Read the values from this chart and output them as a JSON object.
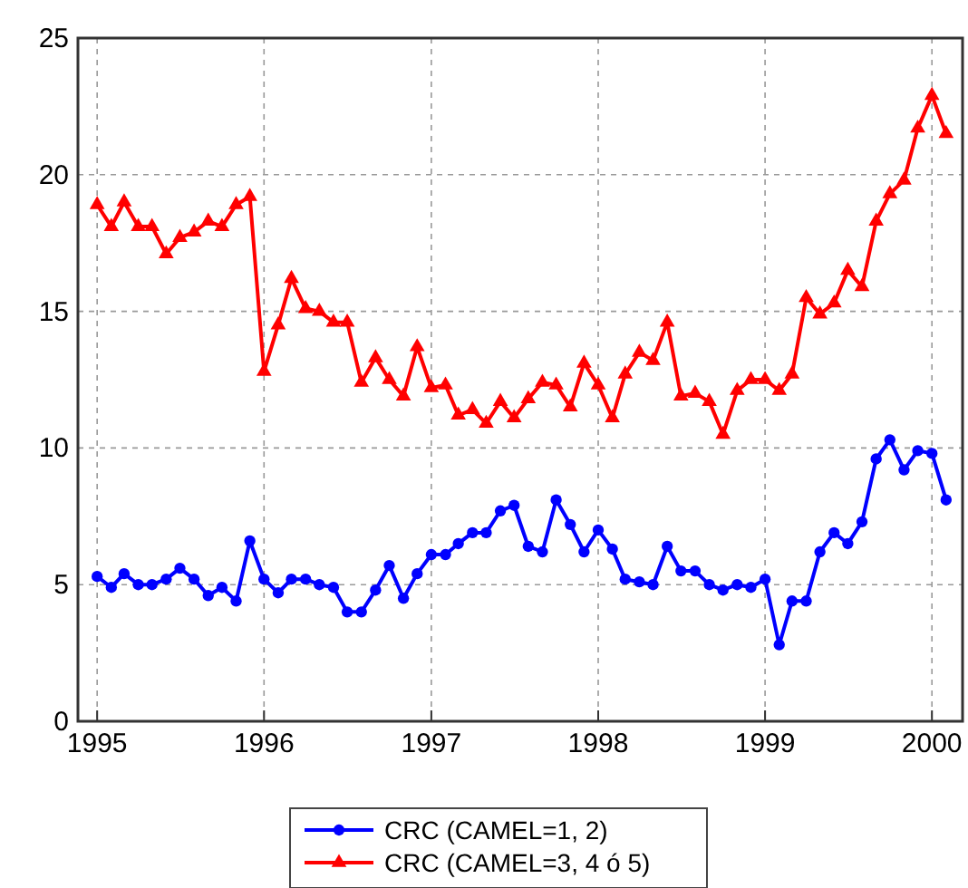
{
  "chart_data": {
    "type": "line",
    "x": [
      "1995-01",
      "1995-02",
      "1995-03",
      "1995-04",
      "1995-05",
      "1995-06",
      "1995-07",
      "1995-08",
      "1995-09",
      "1995-10",
      "1995-11",
      "1995-12",
      "1996-01",
      "1996-02",
      "1996-03",
      "1996-04",
      "1996-05",
      "1996-06",
      "1996-07",
      "1996-08",
      "1996-09",
      "1996-10",
      "1996-11",
      "1996-12",
      "1997-01",
      "1997-02",
      "1997-03",
      "1997-04",
      "1997-05",
      "1997-06",
      "1997-07",
      "1997-08",
      "1997-09",
      "1997-10",
      "1997-11",
      "1997-12",
      "1998-01",
      "1998-02",
      "1998-03",
      "1998-04",
      "1998-05",
      "1998-06",
      "1998-07",
      "1998-08",
      "1998-09",
      "1998-10",
      "1998-11",
      "1998-12",
      "1999-01",
      "1999-02",
      "1999-03",
      "1999-04",
      "1999-05",
      "1999-06",
      "1999-07",
      "1999-08",
      "1999-09",
      "1999-10",
      "1999-11",
      "1999-12",
      "2000-01",
      "2000-02"
    ],
    "series": [
      {
        "name": "CRC (CAMEL=1, 2)",
        "color": "#0000ff",
        "marker": "circle",
        "values": [
          5.3,
          4.9,
          5.4,
          5.0,
          5.0,
          5.2,
          5.6,
          5.2,
          4.6,
          4.9,
          4.4,
          6.6,
          5.2,
          4.7,
          5.2,
          5.2,
          5.0,
          4.9,
          4.0,
          4.0,
          4.8,
          5.7,
          4.5,
          5.4,
          6.1,
          6.1,
          6.5,
          6.9,
          6.9,
          7.7,
          7.9,
          6.4,
          6.2,
          8.1,
          7.2,
          6.2,
          7.0,
          6.3,
          5.2,
          5.1,
          5.0,
          6.4,
          5.5,
          5.5,
          5.0,
          4.8,
          5.0,
          4.9,
          5.2,
          2.8,
          4.4,
          4.4,
          6.2,
          6.9,
          6.5,
          7.3,
          9.6,
          10.3,
          9.2,
          9.9,
          9.8,
          8.1
        ]
      },
      {
        "name": "CRC (CAMEL=3, 4 ó 5)",
        "color": "#ff0000",
        "marker": "triangle",
        "values": [
          18.9,
          18.1,
          19.0,
          18.1,
          18.1,
          17.1,
          17.7,
          17.9,
          18.3,
          18.1,
          18.9,
          19.2,
          12.8,
          14.5,
          16.2,
          15.1,
          15.0,
          14.6,
          14.6,
          12.4,
          13.3,
          12.5,
          11.9,
          13.7,
          12.2,
          12.3,
          11.2,
          11.4,
          10.9,
          11.7,
          11.1,
          11.8,
          12.4,
          12.3,
          11.5,
          13.1,
          12.3,
          11.1,
          12.7,
          13.5,
          13.2,
          14.6,
          11.9,
          12.0,
          11.7,
          10.5,
          12.1,
          12.5,
          12.5,
          12.1,
          12.7,
          15.5,
          14.9,
          15.3,
          16.5,
          15.9,
          18.3,
          19.3,
          19.8,
          21.7,
          22.9,
          21.5
        ]
      }
    ],
    "xlim": [
      "1994-11-20",
      "2000-03-08"
    ],
    "xticks": [
      {
        "value": "1995-01-01",
        "label": "1995"
      },
      {
        "value": "1996-01-01",
        "label": "1996"
      },
      {
        "value": "1997-01-01",
        "label": "1997"
      },
      {
        "value": "1998-01-01",
        "label": "1998"
      },
      {
        "value": "1999-01-01",
        "label": "1999"
      },
      {
        "value": "2000-01-01",
        "label": "2000"
      }
    ],
    "ylim": [
      0,
      25
    ],
    "yticks": [
      0,
      5,
      10,
      15,
      20,
      25
    ],
    "grid": true,
    "legend": "bottom",
    "line_style": "solid"
  }
}
